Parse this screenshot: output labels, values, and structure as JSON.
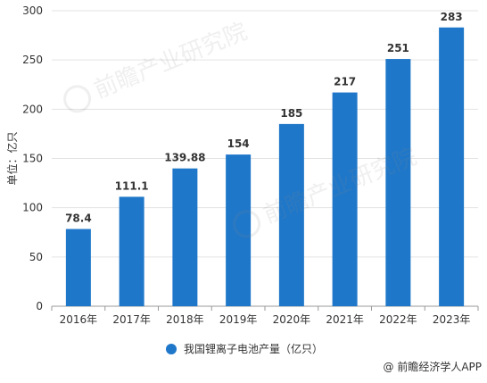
{
  "chart_data": {
    "type": "bar",
    "categories": [
      "2016年",
      "2017年",
      "2018年",
      "2019年",
      "2020年",
      "2021年",
      "2022年",
      "2023年"
    ],
    "series": [
      {
        "name": "我国锂离子电池产量（亿只）",
        "values": [
          78.4,
          111.1,
          139.88,
          154,
          185,
          217,
          251,
          283
        ],
        "labels": [
          "78.4",
          "111.1",
          "139.88",
          "154",
          "185",
          "217",
          "251",
          "283"
        ],
        "color": "#1f77c9"
      }
    ],
    "ylabel": "单位：亿只",
    "ylim": [
      0,
      300
    ],
    "yticks": [
      0,
      50,
      100,
      150,
      200,
      250,
      300
    ],
    "grid": true,
    "legend_placement": "bottom"
  },
  "source_note": "@ 前瞻经济学人APP",
  "watermark_text": "前瞻产业研究院"
}
